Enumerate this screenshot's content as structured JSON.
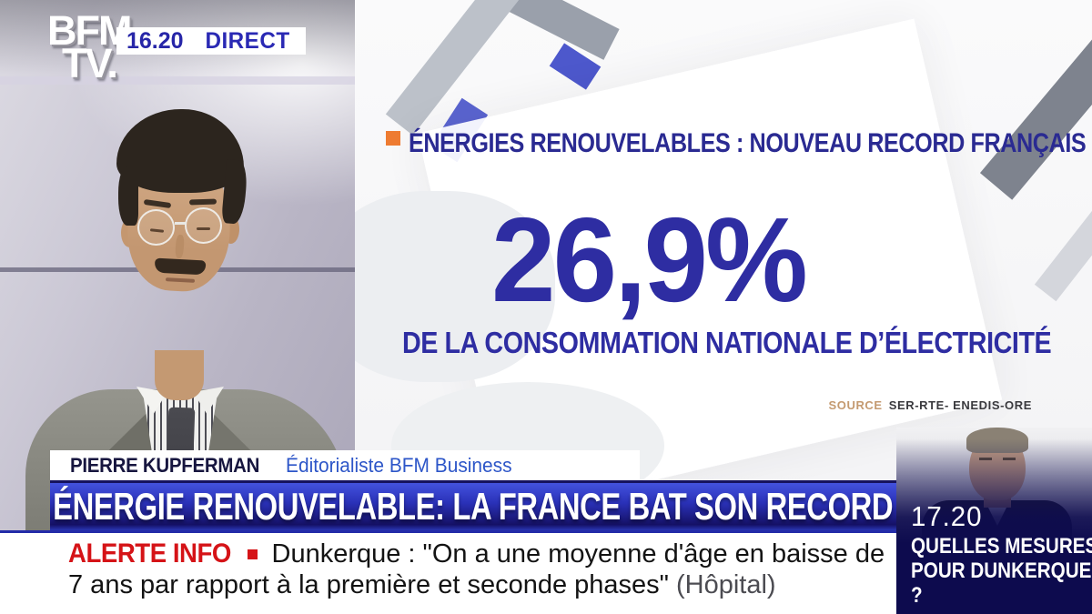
{
  "channel": {
    "logo_line1": "BFM",
    "logo_line2": "TV.",
    "time": "16.20",
    "live_label": "DIRECT"
  },
  "infographic": {
    "kicker": "ÉNERGIES RENOUVELABLES : NOUVEAU RECORD FRANÇAIS",
    "big_value": "26,9%",
    "subtitle": "DE LA CONSOMMATION NATIONALE D’ÉLECTRICITÉ",
    "source_label": "SOURCE",
    "source_value": "SER-RTE- ENEDIS-ORE"
  },
  "speaker": {
    "name": "PIERRE KUPFERMAN",
    "role": "Éditorialiste BFM Business"
  },
  "banner": {
    "headline": "ÉNERGIE RENOUVELABLE: LA FRANCE BAT SON RECORD"
  },
  "ticker": {
    "label": "ALERTE INFO",
    "line1": "Dunkerque : \"On a une moyenne d'âge en baisse de",
    "line2": "7 ans par rapport à la première et seconde phases\"",
    "line2_suffix": "(Hôpital)"
  },
  "upnext": {
    "time": "17.20",
    "title_line1": "QUELLES MESURES",
    "title_line2": "POUR DUNKERQUE",
    "title_line3": "?"
  },
  "colors": {
    "brand_navy": "#2e2da2",
    "banner_blue_top": "#4352de",
    "banner_blue_bottom": "#151166",
    "alert_red": "#d51317",
    "kicker_orange": "#ee7b31",
    "source_tan": "#c49a70",
    "upnext_navy": "#0d0b4e"
  }
}
